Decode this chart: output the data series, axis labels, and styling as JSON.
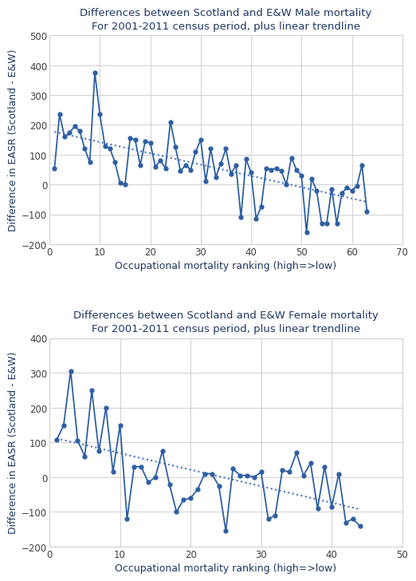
{
  "title1": "Differences between Scotland and E&W Male mortality\nFor 2001-2011 census period, plus linear trendline",
  "title2": "Differences between Scotland and E&W Female mortality\nFor 2001-2011 census period, plus linear trendline",
  "xlabel": "Occupational mortality ranking (high=>low)",
  "ylabel": "Difference in EASR (Scotland - E&W)",
  "line_color": "#2E5FA3",
  "trend_color": "#4472C4",
  "male_x": [
    1,
    2,
    3,
    4,
    5,
    6,
    7,
    8,
    9,
    10,
    11,
    12,
    13,
    14,
    15,
    16,
    17,
    18,
    19,
    20,
    21,
    22,
    23,
    24,
    25,
    26,
    27,
    28,
    29,
    30,
    31,
    32,
    33,
    34,
    35,
    36,
    37,
    38,
    39,
    40,
    41,
    42,
    43,
    44,
    45,
    46,
    47,
    48,
    49,
    50,
    51,
    52,
    53,
    54,
    55,
    56,
    57,
    58,
    59,
    60,
    61,
    62,
    63
  ],
  "male_y": [
    55,
    235,
    160,
    175,
    195,
    180,
    120,
    75,
    375,
    235,
    130,
    120,
    75,
    5,
    0,
    155,
    150,
    65,
    145,
    140,
    60,
    80,
    55,
    210,
    125,
    45,
    65,
    50,
    110,
    150,
    10,
    120,
    25,
    70,
    120,
    35,
    65,
    -110,
    85,
    40,
    -115,
    -75,
    55,
    50,
    55,
    45,
    0,
    90,
    50,
    30,
    -160,
    20,
    -20,
    -130,
    -130,
    -15,
    -130,
    -30,
    -10,
    -20,
    -5,
    65,
    -90
  ],
  "female_x": [
    1,
    2,
    3,
    4,
    5,
    6,
    7,
    8,
    9,
    10,
    11,
    12,
    13,
    14,
    15,
    16,
    17,
    18,
    19,
    20,
    21,
    22,
    23,
    24,
    25,
    26,
    27,
    28,
    29,
    30,
    31,
    32,
    33,
    34,
    35,
    36,
    37,
    38,
    39,
    40,
    41,
    42,
    43,
    44
  ],
  "female_y": [
    107,
    148,
    305,
    105,
    60,
    250,
    75,
    200,
    15,
    150,
    -120,
    30,
    30,
    -15,
    0,
    75,
    -20,
    -100,
    -65,
    -60,
    -35,
    10,
    10,
    -25,
    -155,
    25,
    5,
    5,
    0,
    15,
    -120,
    -110,
    20,
    15,
    70,
    5,
    40,
    -90,
    30,
    -85,
    10,
    -130,
    -120,
    -140
  ],
  "male_xlim": [
    0,
    70
  ],
  "male_ylim": [
    -200,
    500
  ],
  "male_yticks": [
    -200,
    -100,
    0,
    100,
    200,
    300,
    400,
    500
  ],
  "male_xticks": [
    0,
    10,
    20,
    30,
    40,
    50,
    60,
    70
  ],
  "female_xlim": [
    0,
    50
  ],
  "female_ylim": [
    -200,
    400
  ],
  "female_yticks": [
    -200,
    -100,
    0,
    100,
    200,
    300,
    400
  ],
  "female_xticks": [
    0,
    10,
    20,
    30,
    40,
    50
  ],
  "bg_color": "#FFFFFF",
  "plot_bg_color": "#FFFFFF",
  "grid_color": "#D0D0D0",
  "title_fontsize": 9.5,
  "axis_label_fontsize": 9,
  "tick_fontsize": 8.5,
  "title_color": "#1F3864",
  "axis_color": "#1F3864",
  "tick_color": "#404040",
  "spine_color": "#D0D0D0"
}
